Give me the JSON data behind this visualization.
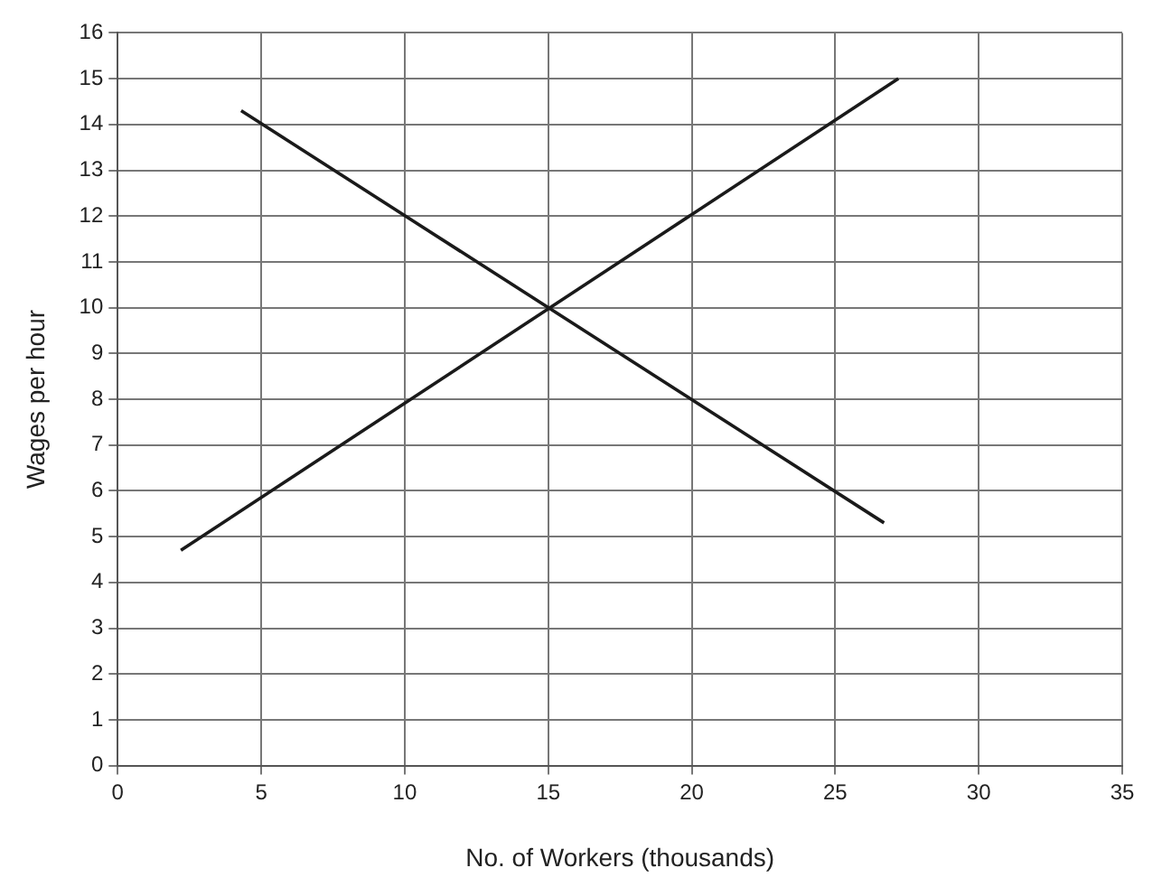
{
  "chart_data": {
    "type": "line",
    "xlabel": "No. of Workers (thousands)",
    "ylabel": "Wages per hour",
    "series": [
      {
        "color": "#1a1a1a",
        "x": [
          2.2,
          27.2
        ],
        "values": [
          4.7,
          15
        ]
      },
      {
        "color": "#1a1a1a",
        "x": [
          4.3,
          26.7
        ],
        "values": [
          14.3,
          5.3
        ]
      }
    ],
    "xlim": [
      0,
      35
    ],
    "xticks": [
      0,
      5,
      10,
      15,
      20,
      25,
      30,
      35
    ],
    "ylim": [
      0,
      16
    ],
    "yticks": [
      0,
      1,
      2,
      3,
      4,
      5,
      6,
      7,
      8,
      9,
      10,
      11,
      12,
      13,
      14,
      15,
      16
    ],
    "grid": true,
    "legend": false,
    "marker": "none",
    "line_style": "solid"
  }
}
